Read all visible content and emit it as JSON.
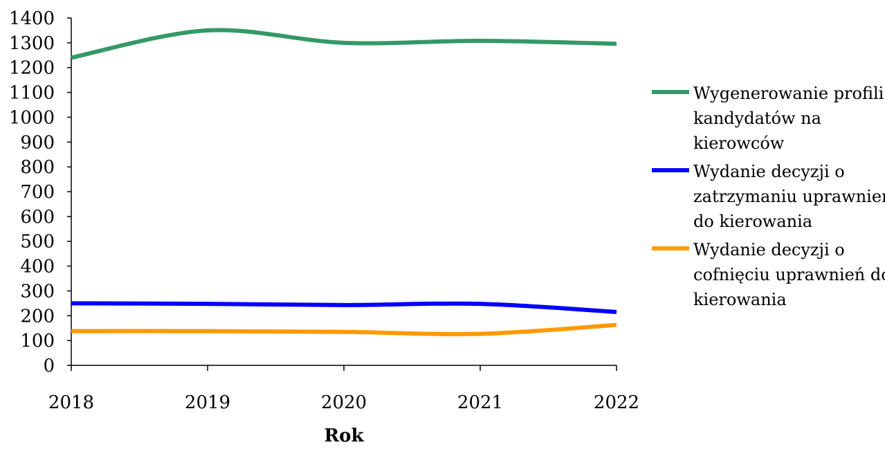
{
  "chart_data": {
    "type": "line",
    "title": "",
    "xlabel": "Rok",
    "ylabel": "",
    "categories": [
      "2018",
      "2019",
      "2020",
      "2021",
      "2022"
    ],
    "ylim": [
      0,
      1400
    ],
    "yticks": [
      0,
      100,
      200,
      300,
      400,
      500,
      600,
      700,
      800,
      900,
      1000,
      1100,
      1200,
      1300,
      1400
    ],
    "grid": false,
    "legend_position": "right",
    "series": [
      {
        "name": "Wygenerowanie profili kandydatów na kierowców",
        "legend_lines": [
          "Wygenerowanie profili",
          "kandydatów na",
          "kierowców"
        ],
        "color": "#339966",
        "values": [
          1240,
          1350,
          1300,
          1308,
          1296
        ]
      },
      {
        "name": "Wydanie decyzji o zatrzymaniu uprawnień do kierowania",
        "legend_lines": [
          "Wydanie decyzji o",
          "zatrzymaniu uprawnień",
          "do kierowania"
        ],
        "color": "#0000ff",
        "values": [
          250,
          248,
          243,
          248,
          215
        ]
      },
      {
        "name": "Wydanie decyzji o cofnięciu uprawnień do kierowania",
        "legend_lines": [
          "Wydanie decyzji o",
          "cofnięciu uprawnień do",
          "kierowania"
        ],
        "color": "#ff9900",
        "values": [
          138,
          138,
          135,
          127,
          163
        ]
      }
    ]
  }
}
